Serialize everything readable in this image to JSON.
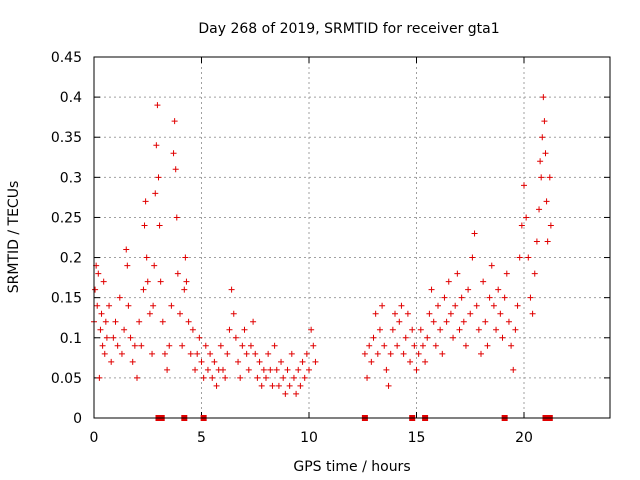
{
  "chart_data": {
    "type": "scatter",
    "title": "Day 268 of 2019, SRMTID for receiver gta1",
    "xlabel": "GPS time / hours",
    "ylabel": "SRMTID / TECUs",
    "xlim": [
      0,
      24
    ],
    "ylim": [
      0,
      0.45
    ],
    "grid": true,
    "x_ticks": [
      0,
      5,
      10,
      15,
      20
    ],
    "x_tick_labels": [
      "0",
      "5",
      "10",
      "15",
      "20"
    ],
    "y_ticks": [
      0,
      0.05,
      0.1,
      0.15,
      0.2,
      0.25,
      0.3,
      0.35,
      0.4,
      0.45
    ],
    "y_tick_labels": [
      "0",
      "0.05",
      "0.1",
      "0.15",
      "0.2",
      "0.25",
      "0.3",
      "0.35",
      "0.4",
      "0.45"
    ],
    "marker_color": "#e00000",
    "series": [
      {
        "name": "SRMTID",
        "marker": "+",
        "points": [
          [
            0.0,
            0.12
          ],
          [
            0.05,
            0.16
          ],
          [
            0.1,
            0.19
          ],
          [
            0.15,
            0.14
          ],
          [
            0.2,
            0.18
          ],
          [
            0.25,
            0.05
          ],
          [
            0.3,
            0.11
          ],
          [
            0.35,
            0.13
          ],
          [
            0.4,
            0.09
          ],
          [
            0.45,
            0.17
          ],
          [
            0.5,
            0.08
          ],
          [
            0.55,
            0.12
          ],
          [
            0.6,
            0.1
          ],
          [
            0.7,
            0.14
          ],
          [
            0.8,
            0.07
          ],
          [
            0.9,
            0.1
          ],
          [
            1.0,
            0.12
          ],
          [
            1.1,
            0.09
          ],
          [
            1.2,
            0.15
          ],
          [
            1.3,
            0.08
          ],
          [
            1.4,
            0.11
          ],
          [
            1.5,
            0.21
          ],
          [
            1.55,
            0.19
          ],
          [
            1.6,
            0.14
          ],
          [
            1.7,
            0.1
          ],
          [
            1.8,
            0.07
          ],
          [
            1.9,
            0.09
          ],
          [
            2.0,
            0.05
          ],
          [
            2.1,
            0.12
          ],
          [
            2.2,
            0.09
          ],
          [
            2.3,
            0.16
          ],
          [
            2.35,
            0.24
          ],
          [
            2.4,
            0.27
          ],
          [
            2.45,
            0.2
          ],
          [
            2.5,
            0.17
          ],
          [
            2.6,
            0.13
          ],
          [
            2.7,
            0.08
          ],
          [
            2.75,
            0.14
          ],
          [
            2.8,
            0.19
          ],
          [
            2.85,
            0.28
          ],
          [
            2.9,
            0.34
          ],
          [
            2.95,
            0.39
          ],
          [
            3.0,
            0.3
          ],
          [
            3.05,
            0.24
          ],
          [
            3.1,
            0.17
          ],
          [
            3.2,
            0.12
          ],
          [
            3.3,
            0.08
          ],
          [
            3.4,
            0.06
          ],
          [
            3.5,
            0.09
          ],
          [
            3.6,
            0.14
          ],
          [
            3.7,
            0.33
          ],
          [
            3.75,
            0.37
          ],
          [
            3.8,
            0.31
          ],
          [
            3.85,
            0.25
          ],
          [
            3.9,
            0.18
          ],
          [
            4.0,
            0.13
          ],
          [
            4.1,
            0.09
          ],
          [
            4.2,
            0.16
          ],
          [
            4.25,
            0.2
          ],
          [
            4.3,
            0.17
          ],
          [
            4.4,
            0.12
          ],
          [
            4.5,
            0.08
          ],
          [
            4.6,
            0.11
          ],
          [
            4.7,
            0.06
          ],
          [
            4.8,
            0.08
          ],
          [
            4.9,
            0.1
          ],
          [
            5.0,
            0.07
          ],
          [
            5.1,
            0.05
          ],
          [
            5.2,
            0.09
          ],
          [
            5.3,
            0.06
          ],
          [
            5.4,
            0.08
          ],
          [
            5.5,
            0.05
          ],
          [
            5.6,
            0.07
          ],
          [
            5.7,
            0.04
          ],
          [
            5.8,
            0.06
          ],
          [
            5.9,
            0.09
          ],
          [
            6.0,
            0.06
          ],
          [
            6.1,
            0.05
          ],
          [
            6.2,
            0.08
          ],
          [
            6.3,
            0.11
          ],
          [
            6.4,
            0.16
          ],
          [
            6.5,
            0.13
          ],
          [
            6.6,
            0.1
          ],
          [
            6.7,
            0.07
          ],
          [
            6.8,
            0.05
          ],
          [
            6.9,
            0.09
          ],
          [
            7.0,
            0.11
          ],
          [
            7.1,
            0.08
          ],
          [
            7.2,
            0.06
          ],
          [
            7.3,
            0.09
          ],
          [
            7.4,
            0.12
          ],
          [
            7.5,
            0.08
          ],
          [
            7.6,
            0.05
          ],
          [
            7.7,
            0.07
          ],
          [
            7.8,
            0.04
          ],
          [
            7.9,
            0.06
          ],
          [
            8.0,
            0.05
          ],
          [
            8.1,
            0.08
          ],
          [
            8.2,
            0.06
          ],
          [
            8.3,
            0.04
          ],
          [
            8.4,
            0.09
          ],
          [
            8.5,
            0.06
          ],
          [
            8.6,
            0.04
          ],
          [
            8.7,
            0.07
          ],
          [
            8.8,
            0.05
          ],
          [
            8.9,
            0.03
          ],
          [
            9.0,
            0.06
          ],
          [
            9.1,
            0.04
          ],
          [
            9.2,
            0.08
          ],
          [
            9.3,
            0.05
          ],
          [
            9.4,
            0.03
          ],
          [
            9.5,
            0.06
          ],
          [
            9.6,
            0.04
          ],
          [
            9.7,
            0.07
          ],
          [
            9.8,
            0.05
          ],
          [
            9.9,
            0.08
          ],
          [
            10.0,
            0.06
          ],
          [
            10.1,
            0.11
          ],
          [
            10.2,
            0.09
          ],
          [
            10.3,
            0.07
          ],
          [
            12.6,
            0.08
          ],
          [
            12.7,
            0.05
          ],
          [
            12.8,
            0.09
          ],
          [
            12.9,
            0.07
          ],
          [
            13.0,
            0.1
          ],
          [
            13.1,
            0.13
          ],
          [
            13.2,
            0.08
          ],
          [
            13.3,
            0.11
          ],
          [
            13.4,
            0.14
          ],
          [
            13.5,
            0.09
          ],
          [
            13.6,
            0.06
          ],
          [
            13.7,
            0.04
          ],
          [
            13.8,
            0.08
          ],
          [
            13.9,
            0.11
          ],
          [
            14.0,
            0.13
          ],
          [
            14.1,
            0.09
          ],
          [
            14.2,
            0.12
          ],
          [
            14.3,
            0.14
          ],
          [
            14.4,
            0.08
          ],
          [
            14.5,
            0.1
          ],
          [
            14.6,
            0.13
          ],
          [
            14.7,
            0.07
          ],
          [
            14.8,
            0.11
          ],
          [
            14.9,
            0.09
          ],
          [
            15.0,
            0.06
          ],
          [
            15.1,
            0.08
          ],
          [
            15.2,
            0.11
          ],
          [
            15.3,
            0.09
          ],
          [
            15.4,
            0.07
          ],
          [
            15.5,
            0.1
          ],
          [
            15.6,
            0.13
          ],
          [
            15.7,
            0.16
          ],
          [
            15.8,
            0.12
          ],
          [
            15.9,
            0.09
          ],
          [
            16.0,
            0.14
          ],
          [
            16.1,
            0.11
          ],
          [
            16.2,
            0.08
          ],
          [
            16.3,
            0.15
          ],
          [
            16.4,
            0.12
          ],
          [
            16.5,
            0.17
          ],
          [
            16.6,
            0.13
          ],
          [
            16.7,
            0.1
          ],
          [
            16.8,
            0.14
          ],
          [
            16.9,
            0.18
          ],
          [
            17.0,
            0.11
          ],
          [
            17.1,
            0.15
          ],
          [
            17.2,
            0.12
          ],
          [
            17.3,
            0.09
          ],
          [
            17.4,
            0.16
          ],
          [
            17.5,
            0.13
          ],
          [
            17.6,
            0.2
          ],
          [
            17.7,
            0.23
          ],
          [
            17.8,
            0.14
          ],
          [
            17.9,
            0.11
          ],
          [
            18.0,
            0.08
          ],
          [
            18.1,
            0.17
          ],
          [
            18.2,
            0.12
          ],
          [
            18.3,
            0.09
          ],
          [
            18.4,
            0.15
          ],
          [
            18.5,
            0.19
          ],
          [
            18.6,
            0.14
          ],
          [
            18.7,
            0.11
          ],
          [
            18.8,
            0.16
          ],
          [
            18.9,
            0.13
          ],
          [
            19.0,
            0.1
          ],
          [
            19.1,
            0.15
          ],
          [
            19.2,
            0.18
          ],
          [
            19.3,
            0.12
          ],
          [
            19.4,
            0.09
          ],
          [
            19.5,
            0.06
          ],
          [
            19.6,
            0.11
          ],
          [
            19.7,
            0.14
          ],
          [
            19.8,
            0.2
          ],
          [
            19.9,
            0.24
          ],
          [
            20.0,
            0.29
          ],
          [
            20.1,
            0.25
          ],
          [
            20.2,
            0.2
          ],
          [
            20.3,
            0.15
          ],
          [
            20.4,
            0.13
          ],
          [
            20.5,
            0.18
          ],
          [
            20.6,
            0.22
          ],
          [
            20.7,
            0.26
          ],
          [
            20.75,
            0.32
          ],
          [
            20.8,
            0.3
          ],
          [
            20.85,
            0.35
          ],
          [
            20.9,
            0.4
          ],
          [
            20.95,
            0.37
          ],
          [
            21.0,
            0.33
          ],
          [
            21.05,
            0.27
          ],
          [
            21.1,
            0.22
          ],
          [
            21.2,
            0.3
          ],
          [
            21.25,
            0.24
          ]
        ]
      }
    ],
    "bottom_markers_x": [
      3.0,
      3.15,
      4.2,
      5.1,
      12.6,
      14.8,
      15.4,
      19.1,
      21.0,
      21.2
    ]
  }
}
